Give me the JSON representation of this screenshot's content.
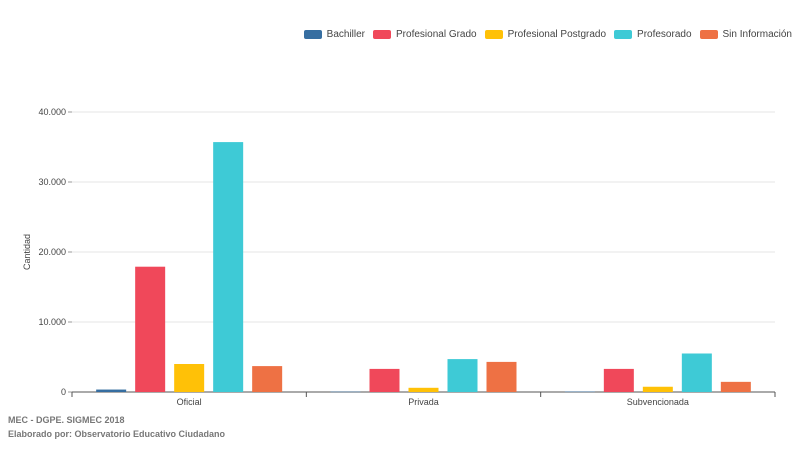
{
  "chart_data": {
    "type": "bar",
    "categories": [
      "Oficial",
      "Privada",
      "Subvencionada"
    ],
    "series": [
      {
        "name": "Bachiller",
        "color": "#366ea1",
        "values": [
          350,
          50,
          60
        ]
      },
      {
        "name": "Profesional Grado",
        "color": "#f0485a",
        "values": [
          17900,
          3300,
          3300
        ]
      },
      {
        "name": "Profesional Postgrado",
        "color": "#ffc107",
        "values": [
          4000,
          600,
          750
        ]
      },
      {
        "name": "Profesorado",
        "color": "#3ecad6",
        "values": [
          35700,
          4700,
          5500
        ]
      },
      {
        "name": "Sin Información",
        "color": "#ee7144",
        "values": [
          3700,
          4300,
          1450
        ]
      }
    ],
    "ylabel": "Cantidad",
    "ylim": [
      0,
      40000
    ],
    "yticks": [
      0,
      10000,
      20000,
      30000,
      40000
    ],
    "ytick_labels": [
      "0",
      "10.000",
      "20.000",
      "30.000",
      "40.000"
    ],
    "grid": true,
    "legend_position": "top-right"
  },
  "source": {
    "line1": "MEC - DGPE. SIGMEC 2018",
    "line2": "Elaborado por: Observatorio Educativo Ciudadano"
  }
}
